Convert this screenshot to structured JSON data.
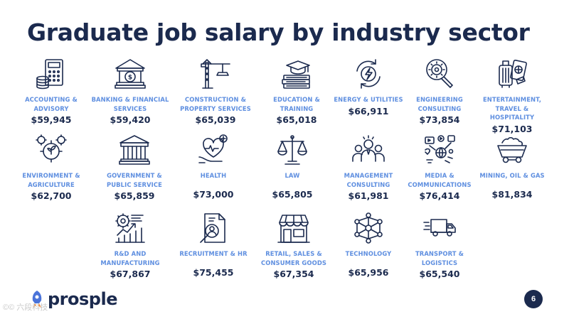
{
  "slide": {
    "title": "Graduate job salary by industry sector",
    "page_number": "6",
    "brand": "prosple",
    "watermark": "©© 六段科技"
  },
  "sectors": [
    {
      "label": "ACCOUNTING & ADVISORY",
      "salary": "$59,945",
      "icon": "calculator-coins-icon"
    },
    {
      "label": "BANKING & FINANCIAL SERVICES",
      "salary": "$59,420",
      "icon": "bank-icon"
    },
    {
      "label": "CONSTRUCTION & PROPERTY SERVICES",
      "salary": "$65,039",
      "icon": "crane-icon"
    },
    {
      "label": "EDUCATION & TRAINING",
      "salary": "$65,018",
      "icon": "graduation-books-icon"
    },
    {
      "label": "ENERGY & UTILITIES",
      "salary": "$66,911",
      "icon": "energy-cycle-icon"
    },
    {
      "label": "ENGINEERING CONSULTING",
      "salary": "$73,854",
      "icon": "gear-magnifier-icon"
    },
    {
      "label": "ENTERTAINMENT, TRAVEL & HOSPITALITY",
      "salary": "$71,103",
      "icon": "luggage-passport-icon"
    },
    {
      "label": "ENVIRONMENT & AGRICULTURE",
      "salary": "$62,700",
      "icon": "plant-gears-icon"
    },
    {
      "label": "GOVERNMENT & PUBLIC SERVICE",
      "salary": "$65,859",
      "icon": "government-building-icon"
    },
    {
      "label": "HEALTH",
      "salary": "$73,000",
      "icon": "heart-hand-icon"
    },
    {
      "label": "LAW",
      "salary": "$65,805",
      "icon": "scales-icon"
    },
    {
      "label": "MANAGEMENT CONSULTING",
      "salary": "$61,981",
      "icon": "team-icon"
    },
    {
      "label": "MEDIA & COMMUNICATIONS",
      "salary": "$76,414",
      "icon": "media-globe-icon"
    },
    {
      "label": "MINING, OIL & GAS",
      "salary": "$81,834",
      "icon": "mine-cart-icon"
    },
    {
      "label": "R&D AND MANUFACTURING",
      "salary": "$67,867",
      "icon": "rd-growth-icon"
    },
    {
      "label": "RECRUITMENT & HR",
      "salary": "$75,455",
      "icon": "resume-search-icon"
    },
    {
      "label": "RETAIL, SALES & CONSUMER GOODS",
      "salary": "$67,354",
      "icon": "storefront-icon"
    },
    {
      "label": "TECHNOLOGY",
      "salary": "$65,956",
      "icon": "network-icon"
    },
    {
      "label": "TRANSPORT & LOGISTICS",
      "salary": "$65,540",
      "icon": "truck-icon"
    }
  ],
  "colors": {
    "navy": "#1b2a4e",
    "label_blue": "#5f8fe0",
    "logo_orange": "#f08a3c",
    "logo_blue": "#4a73d9"
  }
}
